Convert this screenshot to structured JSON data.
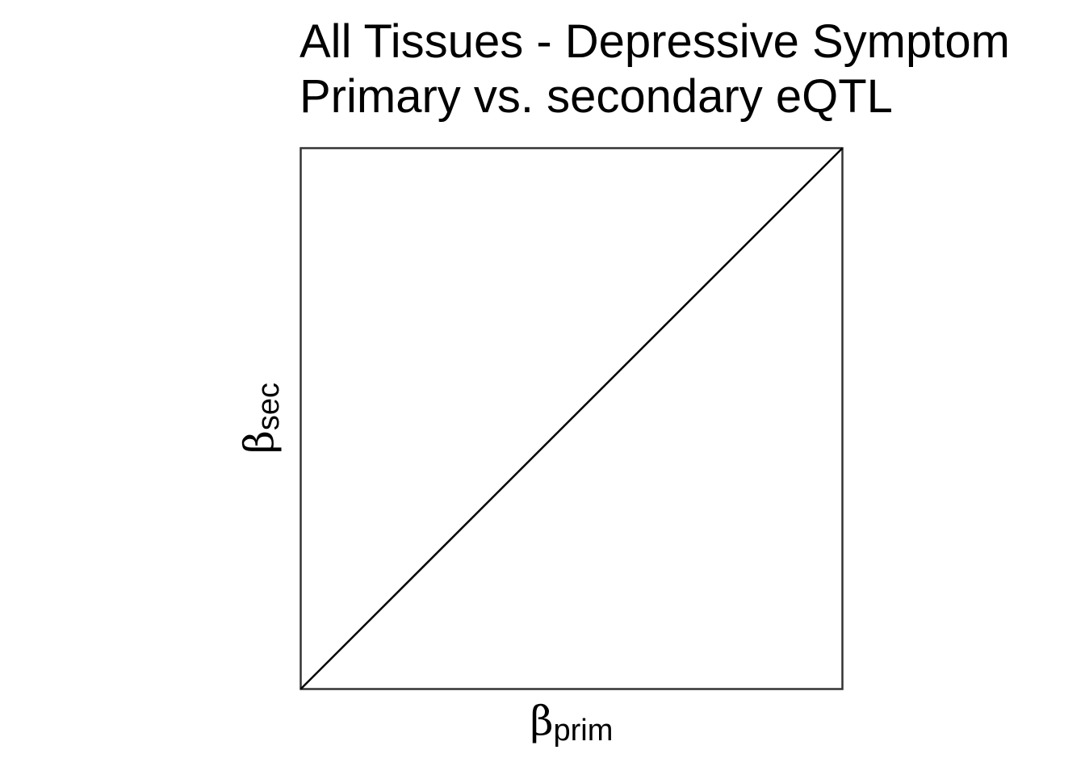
{
  "chart_data": {
    "type": "line",
    "title_lines": [
      "All Tissues - Depressive Symptom",
      "Primary vs. secondary eQTL"
    ],
    "xlabel": {
      "symbol": "β",
      "subscript": "prim"
    },
    "ylabel": {
      "symbol": "β",
      "subscript": "sec"
    },
    "xlim": [
      0,
      1
    ],
    "ylim": [
      0,
      1
    ],
    "series": [
      {
        "x": [
          0,
          1
        ],
        "y": [
          0,
          1
        ]
      }
    ],
    "grid": false,
    "legend": "none",
    "colors": {
      "line": "#000000",
      "frame": "#333333"
    }
  }
}
